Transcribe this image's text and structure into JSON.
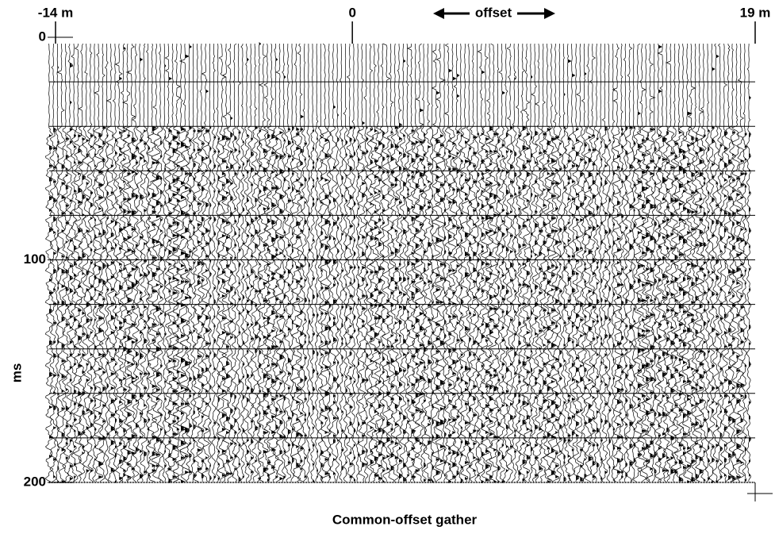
{
  "chart_data": {
    "type": "seismic-wiggle",
    "title": "Common-offset gather",
    "x_label": "offset",
    "y_label": "ms",
    "xlim": [
      -14,
      19
    ],
    "xticks": [
      {
        "value": -14,
        "label": "-14 m"
      },
      0,
      {
        "value": 19,
        "label": "19 m"
      }
    ],
    "ylim": [
      0,
      200
    ],
    "yticks": [
      0,
      100,
      200
    ],
    "ygrid": [
      20,
      40,
      60,
      80,
      100,
      120,
      140,
      160,
      180
    ],
    "color": "#000000"
  }
}
